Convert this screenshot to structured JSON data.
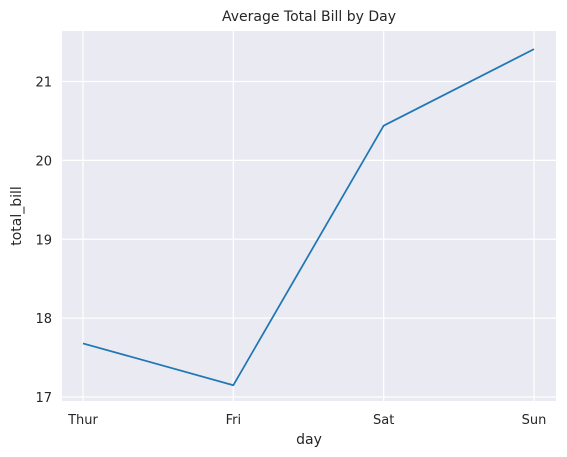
{
  "chart_data": {
    "type": "line",
    "title": "Average Total Bill by Day",
    "xlabel": "day",
    "ylabel": "total_bill",
    "categories": [
      "Thur",
      "Fri",
      "Sat",
      "Sun"
    ],
    "series": [
      {
        "values": [
          17.68,
          17.15,
          20.44,
          21.41
        ],
        "color": "#1f77b4"
      }
    ],
    "ylim": [
      16.95,
      21.64
    ],
    "yticks": [
      17,
      18,
      19,
      20,
      21
    ],
    "grid": true,
    "background_color": "#eaeaf2"
  }
}
